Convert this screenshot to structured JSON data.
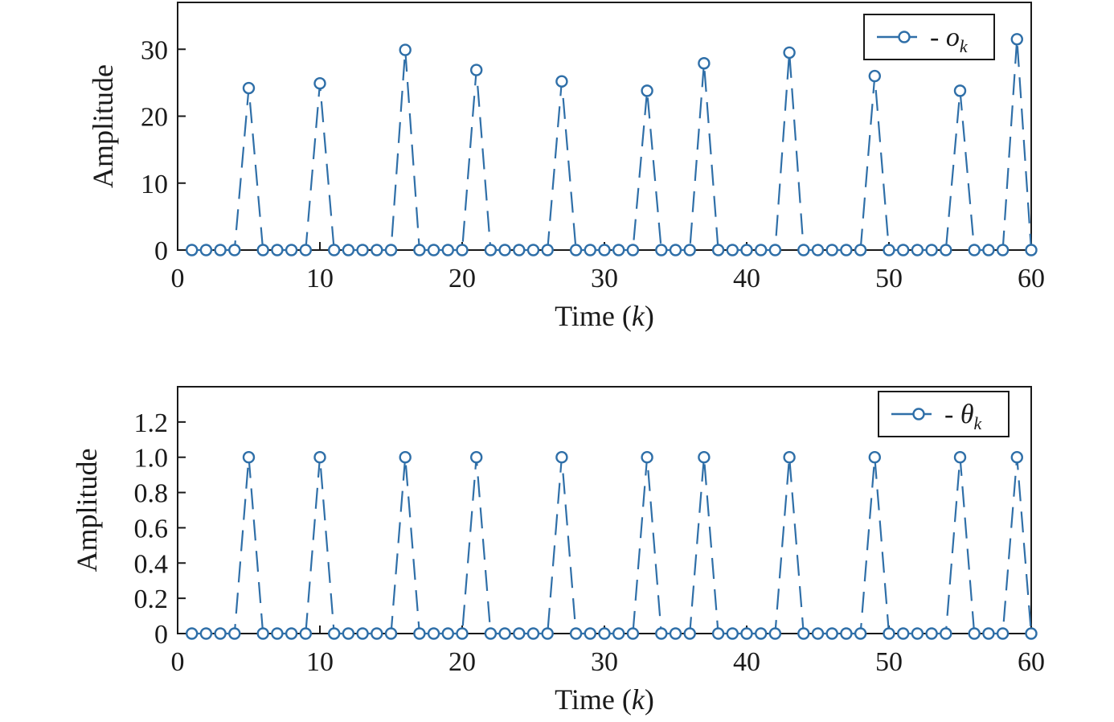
{
  "chart_data": [
    {
      "type": "line",
      "title": "",
      "xlabel": {
        "text": "Time (",
        "var": "k",
        "close": ")"
      },
      "ylabel": "Amplitude",
      "xlim": [
        0,
        60
      ],
      "ylim": [
        0,
        37
      ],
      "xticks": [
        0,
        10,
        20,
        30,
        40,
        50,
        60
      ],
      "yticks": [
        0,
        10,
        20,
        30
      ],
      "ytick_labels": [
        "0",
        "10",
        "20",
        "30"
      ],
      "grid": false,
      "legend": {
        "position": "top-right",
        "text": "o",
        "subscript": "k",
        "prefix": "-"
      },
      "color": "#2f6fa8",
      "series": [
        {
          "x": [
            1,
            2,
            3,
            4,
            5,
            6,
            7,
            8,
            9,
            10,
            11,
            12,
            13,
            14,
            15,
            16,
            17,
            18,
            19,
            20,
            21,
            22,
            23,
            24,
            25,
            26,
            27,
            28,
            29,
            30,
            31,
            32,
            33,
            34,
            35,
            36,
            37,
            38,
            39,
            40,
            41,
            42,
            43,
            44,
            45,
            46,
            47,
            48,
            49,
            50,
            51,
            52,
            53,
            54,
            55,
            56,
            57,
            58,
            59,
            60
          ],
          "y": [
            0,
            0,
            0,
            0,
            24.2,
            0,
            0,
            0,
            0,
            24.9,
            0,
            0,
            0,
            0,
            0,
            29.9,
            0,
            0,
            0,
            0,
            26.9,
            0,
            0,
            0,
            0,
            0,
            25.2,
            0,
            0,
            0,
            0,
            0,
            23.8,
            0,
            0,
            0,
            27.9,
            0,
            0,
            0,
            0,
            0,
            29.5,
            0,
            0,
            0,
            0,
            0,
            26.0,
            0,
            0,
            0,
            0,
            0,
            23.8,
            0,
            0,
            0,
            31.5,
            0
          ]
        }
      ]
    },
    {
      "type": "line",
      "title": "",
      "xlabel": {
        "text": "Time (",
        "var": "k",
        "close": ")"
      },
      "ylabel": "Amplitude",
      "xlim": [
        0,
        60
      ],
      "ylim": [
        0,
        1.4
      ],
      "xticks": [
        0,
        10,
        20,
        30,
        40,
        50,
        60
      ],
      "yticks": [
        0,
        0.2,
        0.4,
        0.6,
        0.8,
        1.0,
        1.2
      ],
      "ytick_labels": [
        "0",
        "0.2",
        "0.4",
        "0.6",
        "0.8",
        "1.0",
        "1.2"
      ],
      "grid": false,
      "legend": {
        "position": "top-right",
        "text": "θ",
        "subscript": "k",
        "prefix": "-"
      },
      "color": "#2f6fa8",
      "series": [
        {
          "x": [
            1,
            2,
            3,
            4,
            5,
            6,
            7,
            8,
            9,
            10,
            11,
            12,
            13,
            14,
            15,
            16,
            17,
            18,
            19,
            20,
            21,
            22,
            23,
            24,
            25,
            26,
            27,
            28,
            29,
            30,
            31,
            32,
            33,
            34,
            35,
            36,
            37,
            38,
            39,
            40,
            41,
            42,
            43,
            44,
            45,
            46,
            47,
            48,
            49,
            50,
            51,
            52,
            53,
            54,
            55,
            56,
            57,
            58,
            59,
            60
          ],
          "y": [
            0,
            0,
            0,
            0,
            1,
            0,
            0,
            0,
            0,
            1,
            0,
            0,
            0,
            0,
            0,
            1,
            0,
            0,
            0,
            0,
            1,
            0,
            0,
            0,
            0,
            0,
            1,
            0,
            0,
            0,
            0,
            0,
            1,
            0,
            0,
            0,
            1,
            0,
            0,
            0,
            0,
            0,
            1,
            0,
            0,
            0,
            0,
            0,
            1,
            0,
            0,
            0,
            0,
            0,
            1,
            0,
            0,
            0,
            1,
            0
          ]
        }
      ]
    }
  ]
}
